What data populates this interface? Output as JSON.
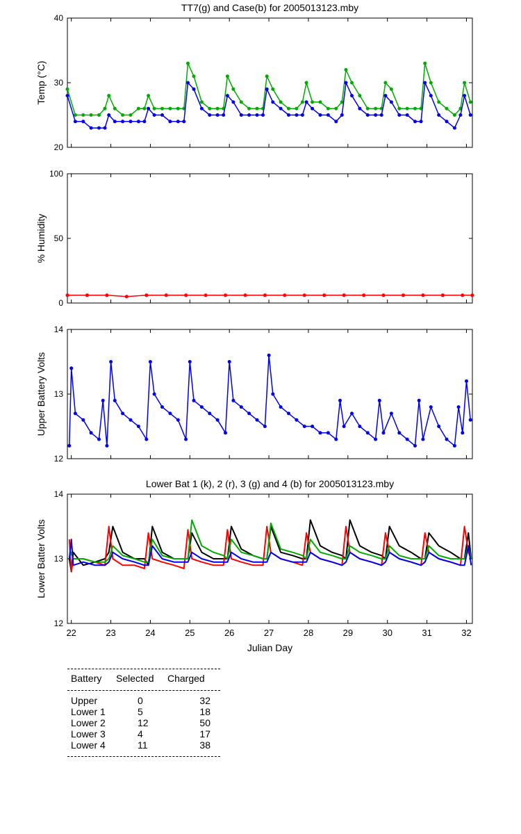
{
  "chart_data": [
    {
      "type": "line",
      "title": "TT7(g) and Case(b) for 2005013123.mby",
      "ylabel": "Temp  (°C)",
      "xlim": [
        21.9,
        32.15
      ],
      "ylim": [
        20,
        40
      ],
      "yticks": [
        20,
        30,
        40
      ],
      "x": [
        21.9,
        22.1,
        22.3,
        22.5,
        22.7,
        22.85,
        22.95,
        23.1,
        23.3,
        23.5,
        23.7,
        23.85,
        23.95,
        24.1,
        24.3,
        24.5,
        24.7,
        24.85,
        24.95,
        25.1,
        25.3,
        25.5,
        25.7,
        25.85,
        25.95,
        26.1,
        26.3,
        26.5,
        26.7,
        26.85,
        26.95,
        27.1,
        27.3,
        27.5,
        27.7,
        27.85,
        27.95,
        28.1,
        28.3,
        28.5,
        28.7,
        28.85,
        28.95,
        29.1,
        29.3,
        29.5,
        29.7,
        29.85,
        29.95,
        30.1,
        30.3,
        30.5,
        30.7,
        30.85,
        30.95,
        31.1,
        31.3,
        31.5,
        31.7,
        31.85,
        31.95,
        32.1
      ],
      "series": [
        {
          "color": "#00aa00",
          "values": [
            29,
            25,
            25,
            25,
            25,
            26,
            28,
            26,
            25,
            25,
            26,
            26,
            28,
            26,
            26,
            26,
            26,
            26,
            33,
            31,
            27,
            26,
            26,
            26,
            31,
            29,
            27,
            26,
            26,
            26,
            31,
            29,
            27,
            26,
            26,
            27,
            30,
            27,
            27,
            26,
            26,
            27,
            32,
            30,
            28,
            26,
            26,
            26,
            30,
            29,
            26,
            26,
            26,
            26,
            33,
            30,
            27,
            26,
            25,
            26,
            30,
            27
          ]
        },
        {
          "color": "#0000ee",
          "values": [
            28,
            24,
            24,
            23,
            23,
            23,
            25,
            24,
            24,
            24,
            24,
            24,
            26,
            25,
            25,
            24,
            24,
            24,
            30,
            29,
            26,
            25,
            25,
            25,
            28,
            27,
            25,
            25,
            25,
            25,
            29,
            27,
            26,
            25,
            25,
            25,
            27,
            26,
            25,
            25,
            24,
            25,
            30,
            28,
            26,
            25,
            25,
            25,
            28,
            27,
            25,
            25,
            24,
            24,
            30,
            28,
            25,
            24,
            23,
            25,
            28,
            25
          ]
        }
      ]
    },
    {
      "type": "line",
      "title": "",
      "ylabel": "% Humidity",
      "xlim": [
        21.9,
        32.15
      ],
      "ylim": [
        0,
        100
      ],
      "yticks": [
        0,
        50,
        100
      ],
      "x": [
        21.9,
        22.4,
        22.9,
        23.4,
        23.9,
        24.4,
        24.9,
        25.4,
        25.9,
        26.4,
        26.9,
        27.4,
        27.9,
        28.4,
        28.9,
        29.4,
        29.9,
        30.4,
        30.9,
        31.4,
        31.9,
        32.15
      ],
      "series": [
        {
          "color": "#ff0000",
          "values": [
            6,
            6,
            6,
            5,
            6,
            6,
            6,
            6,
            6,
            6,
            6,
            6,
            6,
            6,
            6,
            6,
            6,
            6,
            6,
            6,
            6,
            6
          ]
        }
      ]
    },
    {
      "type": "line",
      "title": "",
      "ylabel": "Upper Battery Volts",
      "xlim": [
        21.9,
        32.15
      ],
      "ylim": [
        12,
        14
      ],
      "yticks": [
        12,
        13,
        14
      ],
      "x": [
        21.95,
        22.0,
        22.1,
        22.3,
        22.5,
        22.7,
        22.8,
        22.9,
        23.0,
        23.1,
        23.3,
        23.5,
        23.7,
        23.9,
        24.0,
        24.1,
        24.3,
        24.5,
        24.7,
        24.9,
        25.0,
        25.1,
        25.3,
        25.5,
        25.7,
        25.9,
        26.0,
        26.1,
        26.3,
        26.5,
        26.7,
        26.9,
        27.0,
        27.1,
        27.3,
        27.5,
        27.7,
        27.9,
        28.1,
        28.3,
        28.5,
        28.7,
        28.8,
        28.9,
        29.1,
        29.3,
        29.5,
        29.7,
        29.8,
        29.9,
        30.1,
        30.3,
        30.5,
        30.7,
        30.8,
        30.9,
        31.1,
        31.3,
        31.5,
        31.7,
        31.8,
        31.9,
        32.0,
        32.1
      ],
      "series": [
        {
          "color": "#0000ee",
          "values": [
            12.2,
            13.4,
            12.7,
            12.6,
            12.4,
            12.3,
            12.9,
            12.2,
            13.5,
            12.9,
            12.7,
            12.6,
            12.5,
            12.3,
            13.5,
            13.0,
            12.8,
            12.7,
            12.6,
            12.3,
            13.5,
            12.9,
            12.8,
            12.7,
            12.6,
            12.4,
            13.5,
            12.9,
            12.8,
            12.7,
            12.6,
            12.5,
            13.6,
            13.0,
            12.8,
            12.7,
            12.6,
            12.5,
            12.5,
            12.4,
            12.4,
            12.3,
            12.9,
            12.5,
            12.7,
            12.5,
            12.4,
            12.3,
            12.9,
            12.4,
            12.7,
            12.4,
            12.3,
            12.2,
            12.9,
            12.3,
            12.8,
            12.5,
            12.3,
            12.2,
            12.8,
            12.4,
            13.2,
            12.6
          ]
        }
      ]
    },
    {
      "type": "line",
      "title": "Lower Bat 1 (k), 2 (r), 3 (g) and 4 (b) for 2005013123.mby",
      "ylabel": "Lower Batter Volts",
      "xlabel": "Julian Day",
      "xlim": [
        21.9,
        32.15
      ],
      "ylim": [
        12,
        14
      ],
      "yticks": [
        12,
        13,
        14
      ],
      "xticks": [
        22,
        23,
        24,
        25,
        26,
        27,
        28,
        29,
        30,
        31,
        32
      ],
      "x": [
        21.95,
        22.0,
        22.05,
        22.3,
        22.6,
        22.85,
        22.95,
        23.05,
        23.3,
        23.6,
        23.85,
        23.95,
        24.05,
        24.3,
        24.6,
        24.85,
        24.95,
        25.05,
        25.3,
        25.6,
        25.85,
        25.95,
        26.05,
        26.3,
        26.6,
        26.85,
        26.95,
        27.05,
        27.3,
        27.6,
        27.85,
        27.95,
        28.05,
        28.3,
        28.6,
        28.85,
        28.95,
        29.05,
        29.3,
        29.6,
        29.85,
        29.95,
        30.05,
        30.3,
        30.6,
        30.85,
        30.95,
        31.05,
        31.3,
        31.6,
        31.85,
        31.95,
        32.05,
        32.12
      ],
      "series": [
        {
          "color": "#000000",
          "values": [
            13.0,
            12.8,
            13.1,
            12.9,
            12.95,
            13.0,
            13.1,
            13.5,
            13.1,
            13.0,
            13.0,
            12.9,
            13.5,
            13.1,
            13.0,
            13.0,
            13.0,
            13.4,
            13.1,
            13.0,
            13.0,
            13.0,
            13.5,
            13.15,
            13.05,
            13.0,
            13.0,
            13.5,
            13.1,
            13.05,
            13.0,
            13.0,
            13.6,
            13.2,
            13.1,
            13.05,
            13.0,
            13.6,
            13.2,
            13.1,
            13.05,
            13.0,
            13.5,
            13.2,
            13.1,
            13.0,
            13.0,
            13.4,
            13.2,
            13.1,
            13.0,
            13.0,
            13.4,
            13.0
          ]
        },
        {
          "color": "#ff0000",
          "values": [
            13.3,
            12.8,
            13.0,
            13.0,
            12.95,
            12.9,
            13.5,
            13.0,
            12.9,
            12.9,
            12.85,
            13.4,
            13.0,
            12.95,
            12.9,
            12.85,
            13.45,
            13.0,
            12.95,
            12.9,
            12.9,
            13.45,
            13.0,
            12.95,
            12.9,
            12.9,
            13.5,
            13.1,
            13.0,
            12.95,
            12.9,
            13.4,
            13.1,
            13.0,
            12.95,
            12.9,
            13.5,
            13.1,
            13.0,
            12.95,
            12.9,
            13.4,
            13.1,
            13.0,
            12.95,
            12.9,
            13.4,
            13.1,
            13.0,
            12.95,
            12.9,
            13.5,
            13.1,
            13.0
          ]
        },
        {
          "color": "#00aa00",
          "values": [
            13.0,
            13.1,
            13.0,
            13.0,
            12.95,
            12.95,
            13.0,
            13.2,
            13.05,
            13.0,
            12.95,
            12.95,
            13.3,
            13.05,
            13.0,
            13.0,
            13.0,
            13.6,
            13.2,
            13.1,
            13.05,
            13.0,
            13.3,
            13.1,
            13.05,
            13.0,
            13.0,
            13.55,
            13.15,
            13.1,
            13.05,
            13.0,
            13.3,
            13.1,
            13.05,
            13.0,
            13.0,
            13.2,
            13.1,
            13.05,
            13.0,
            13.0,
            13.2,
            13.05,
            13.0,
            13.0,
            13.0,
            13.2,
            13.05,
            13.0,
            13.0,
            13.0,
            13.2,
            13.0
          ]
        },
        {
          "color": "#0000ee",
          "values": [
            13.0,
            13.3,
            12.9,
            12.95,
            12.9,
            12.9,
            12.95,
            13.1,
            13.0,
            12.95,
            12.9,
            12.9,
            13.2,
            13.0,
            12.95,
            12.95,
            12.95,
            13.1,
            13.0,
            12.95,
            12.95,
            12.95,
            13.1,
            13.0,
            12.95,
            12.95,
            12.95,
            13.1,
            13.0,
            12.95,
            12.95,
            12.95,
            13.1,
            13.0,
            12.95,
            12.9,
            12.95,
            13.1,
            13.0,
            12.95,
            12.9,
            12.95,
            13.1,
            13.0,
            12.95,
            12.9,
            12.95,
            13.1,
            13.0,
            12.95,
            12.9,
            12.9,
            13.2,
            12.9
          ]
        }
      ]
    }
  ],
  "table": {
    "headers": [
      "Battery",
      "Selected",
      "Charged"
    ],
    "rows": [
      [
        "Upper",
        "0",
        "32"
      ],
      [
        "Lower 1",
        "5",
        "18"
      ],
      [
        "Lower 2",
        "12",
        "50"
      ],
      [
        "Lower 3",
        "4",
        "17"
      ],
      [
        "Lower 4",
        "11",
        "38"
      ]
    ]
  }
}
